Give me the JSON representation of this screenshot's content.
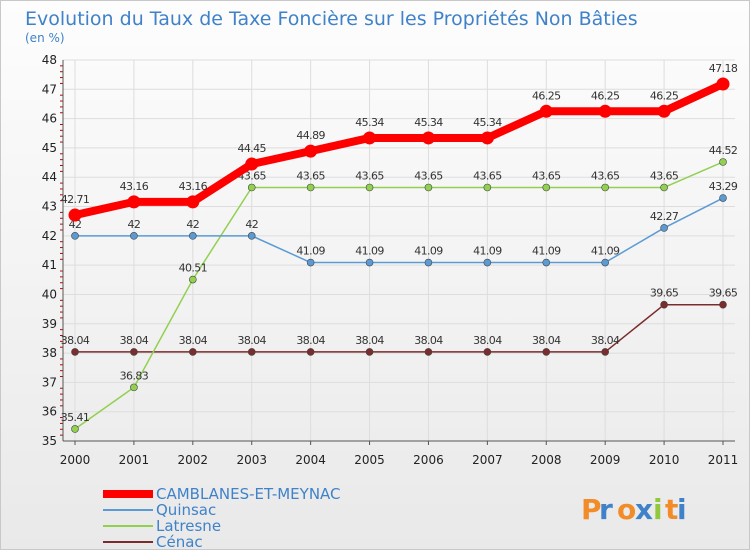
{
  "chart_data": {
    "type": "line",
    "title": "Evolution du Taux de Taxe Foncière sur les Propriétés Non Bâties",
    "subtitle": "(en %)",
    "xlabel": "",
    "ylabel": "",
    "ylim": [
      35,
      48
    ],
    "yticks": [
      35,
      36,
      37,
      38,
      39,
      40,
      41,
      42,
      43,
      44,
      45,
      46,
      47,
      48
    ],
    "categories": [
      "2000",
      "2001",
      "2002",
      "2003",
      "2004",
      "2005",
      "2006",
      "2007",
      "2008",
      "2009",
      "2010",
      "2011"
    ],
    "grid": true,
    "legend_position": "bottom-left",
    "series": [
      {
        "name": "CAMBLANES-ET-MEYNAC",
        "color": "#ff0000",
        "emphasis": true,
        "values": [
          42.71,
          43.16,
          43.16,
          44.45,
          44.89,
          45.34,
          45.34,
          45.34,
          46.25,
          46.25,
          46.25,
          47.18
        ]
      },
      {
        "name": "Quinsac",
        "color": "#5b9bd5",
        "emphasis": false,
        "values": [
          42,
          42,
          42,
          42,
          41.09,
          41.09,
          41.09,
          41.09,
          41.09,
          41.09,
          42.27,
          43.29
        ]
      },
      {
        "name": "Latresne",
        "color": "#92d050",
        "emphasis": false,
        "values": [
          35.41,
          36.83,
          40.51,
          43.65,
          43.65,
          43.65,
          43.65,
          43.65,
          43.65,
          43.65,
          43.65,
          44.52
        ]
      },
      {
        "name": "Cénac",
        "color": "#7b2c2c",
        "emphasis": false,
        "values": [
          38.04,
          38.04,
          38.04,
          38.04,
          38.04,
          38.04,
          38.04,
          38.04,
          38.04,
          38.04,
          39.65,
          39.65
        ]
      }
    ]
  },
  "logo": {
    "letters": [
      "P",
      "r",
      "o",
      "x",
      "i",
      "t",
      "i"
    ],
    "colors": [
      "#f28c28",
      "#3f82c9",
      "#f28c28",
      "#3f82c9",
      "#92c83e",
      "#f28c28",
      "#3f82c9"
    ]
  }
}
